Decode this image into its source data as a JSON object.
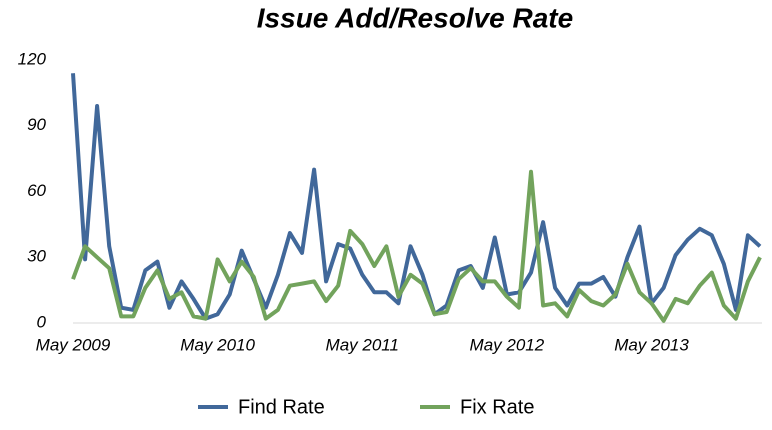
{
  "chart_data": {
    "type": "line",
    "title": "Issue Add/Resolve Rate",
    "categories": [
      "May 2009",
      null,
      null,
      null,
      null,
      null,
      null,
      null,
      null,
      null,
      null,
      null,
      "May 2010",
      null,
      null,
      null,
      null,
      null,
      null,
      null,
      null,
      null,
      null,
      null,
      "May 2011",
      null,
      null,
      null,
      null,
      null,
      null,
      null,
      null,
      null,
      null,
      null,
      "May 2012",
      null,
      null,
      null,
      null,
      null,
      null,
      null,
      null,
      null,
      null,
      null,
      "May 2013",
      null,
      null,
      null,
      null,
      null,
      null,
      null,
      null,
      null
    ],
    "series": [
      {
        "name": "Find Rate",
        "color": "#41689a",
        "values": [
          114,
          29,
          99,
          35,
          7,
          6,
          24,
          28,
          7,
          19,
          11,
          2,
          4,
          13,
          33,
          20,
          7,
          22,
          41,
          32,
          70,
          19,
          36,
          34,
          22,
          14,
          14,
          9,
          35,
          22,
          4,
          8,
          24,
          26,
          16,
          39,
          13,
          14,
          23,
          46,
          16,
          8,
          18,
          18,
          21,
          12,
          30,
          44,
          9,
          16,
          31,
          38,
          43,
          40,
          27,
          6,
          40,
          35
        ]
      },
      {
        "name": "Fix Rate",
        "color": "#72a35c",
        "values": [
          20,
          35,
          30,
          25,
          3,
          3,
          16,
          24,
          11,
          14,
          3,
          2,
          29,
          19,
          28,
          21,
          2,
          6,
          17,
          18,
          19,
          10,
          17,
          42,
          36,
          26,
          35,
          12,
          22,
          18,
          4,
          5,
          20,
          25,
          19,
          19,
          12,
          7,
          69,
          8,
          9,
          3,
          15,
          10,
          8,
          13,
          27,
          14,
          9,
          1,
          11,
          9,
          17,
          23,
          8,
          2,
          19,
          30
        ]
      }
    ],
    "ylim": [
      0,
      120
    ],
    "yticks": [
      0,
      30,
      60,
      90,
      120
    ],
    "grid": false,
    "legend": "bottom"
  }
}
